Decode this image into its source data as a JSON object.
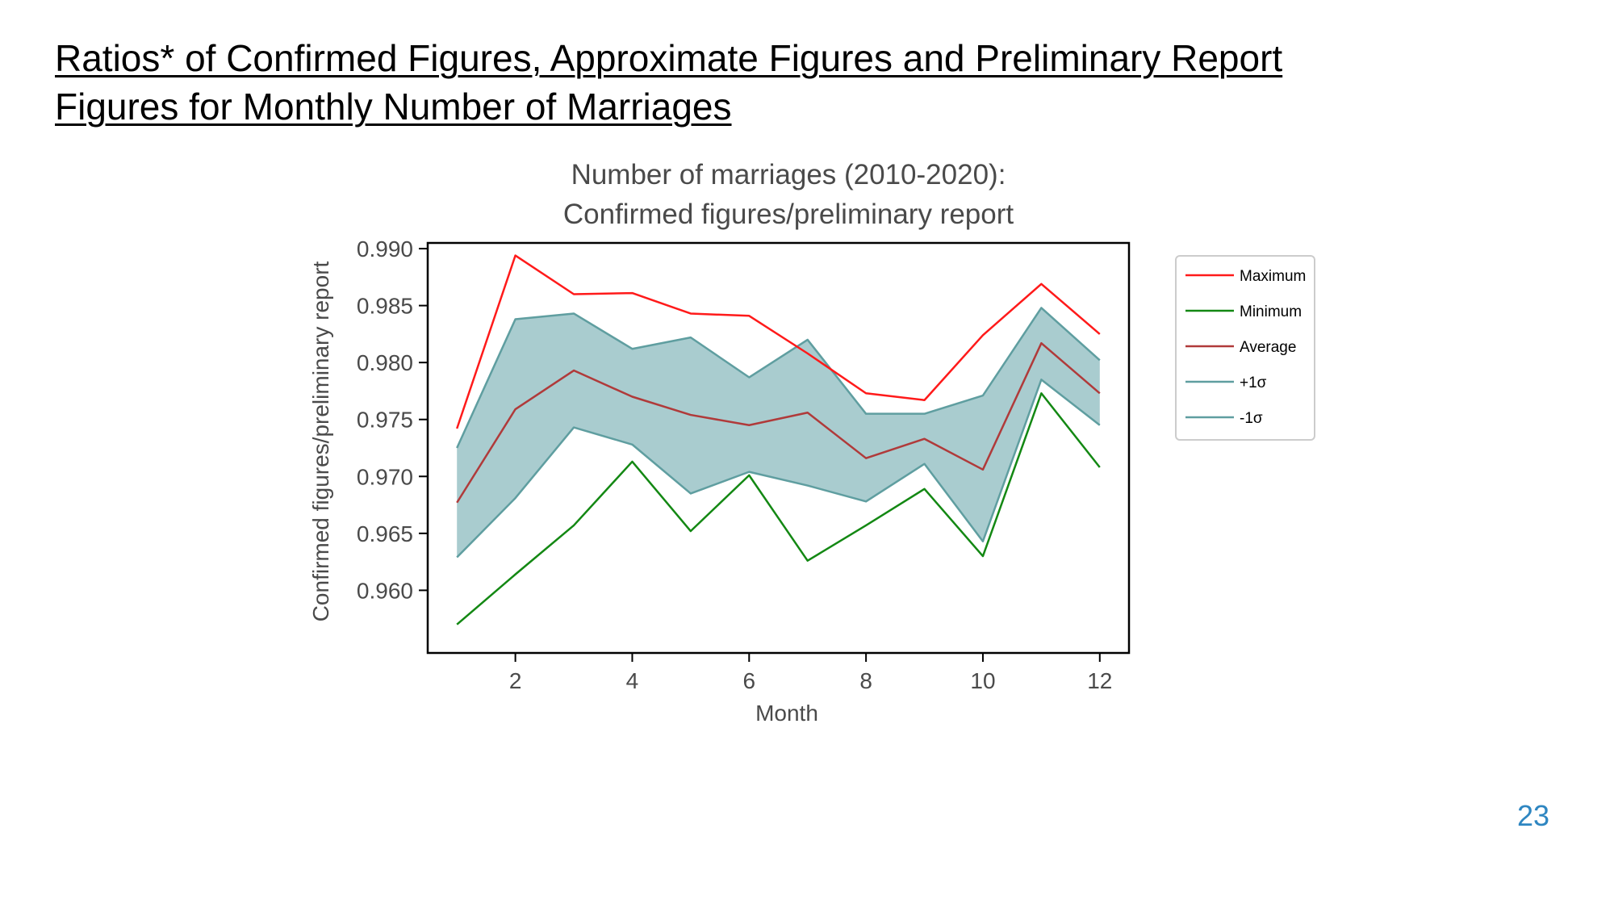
{
  "slide": {
    "title_line1": "Ratios* of Confirmed Figures, Approximate Figures and Preliminary Report",
    "title_line2": "Figures for Monthly Number of Marriages",
    "page_number": "23"
  },
  "chart_data": {
    "type": "line",
    "title_line1": "Number of marriages (2010-2020):",
    "title_line2": "Confirmed figures/preliminary report",
    "xlabel": "Month",
    "ylabel": "Confirmed figures/preliminary report",
    "x": [
      1,
      2,
      3,
      4,
      5,
      6,
      7,
      8,
      9,
      10,
      11,
      12
    ],
    "xticks": [
      2,
      4,
      6,
      8,
      10,
      12
    ],
    "xtick_labels": [
      "2",
      "4",
      "6",
      "8",
      "10",
      "12"
    ],
    "yticks": [
      0.96,
      0.965,
      0.97,
      0.975,
      0.98,
      0.985,
      0.99
    ],
    "ytick_labels": [
      "0.960",
      "0.965",
      "0.970",
      "0.975",
      "0.980",
      "0.985",
      "0.990"
    ],
    "xlim": [
      0.5,
      12.5
    ],
    "ylim": [
      0.9545,
      0.9905
    ],
    "grid": false,
    "legend_position": "right",
    "shade_between": [
      "+1σ",
      "-1σ"
    ],
    "shade_color": "#a9cccf",
    "series": [
      {
        "name": "Maximum",
        "color": "#ff1a1a",
        "values": [
          0.9742,
          0.9894,
          0.986,
          0.9861,
          0.9843,
          0.9841,
          0.9808,
          0.9773,
          0.9767,
          0.9824,
          0.9869,
          0.9825
        ]
      },
      {
        "name": "Minimum",
        "color": "#138813",
        "values": [
          0.957,
          0.9614,
          0.9657,
          0.9713,
          0.9652,
          0.9701,
          0.9626,
          0.9657,
          0.9689,
          0.963,
          0.9773,
          0.9708
        ]
      },
      {
        "name": "Average",
        "color": "#b03a3a",
        "values": [
          0.9677,
          0.9759,
          0.9793,
          0.977,
          0.9754,
          0.9745,
          0.9756,
          0.9716,
          0.9733,
          0.9706,
          0.9817,
          0.9773
        ]
      },
      {
        "name": "+1σ",
        "color": "#5f9ea0",
        "values": [
          0.9725,
          0.9838,
          0.9843,
          0.9812,
          0.9822,
          0.9787,
          0.982,
          0.9755,
          0.9755,
          0.9771,
          0.9848,
          0.9802
        ]
      },
      {
        "name": "-1σ",
        "color": "#5f9ea0",
        "values": [
          0.9629,
          0.9681,
          0.9743,
          0.9728,
          0.9685,
          0.9704,
          0.9692,
          0.9678,
          0.9711,
          0.9643,
          0.9785,
          0.9745
        ]
      }
    ]
  }
}
